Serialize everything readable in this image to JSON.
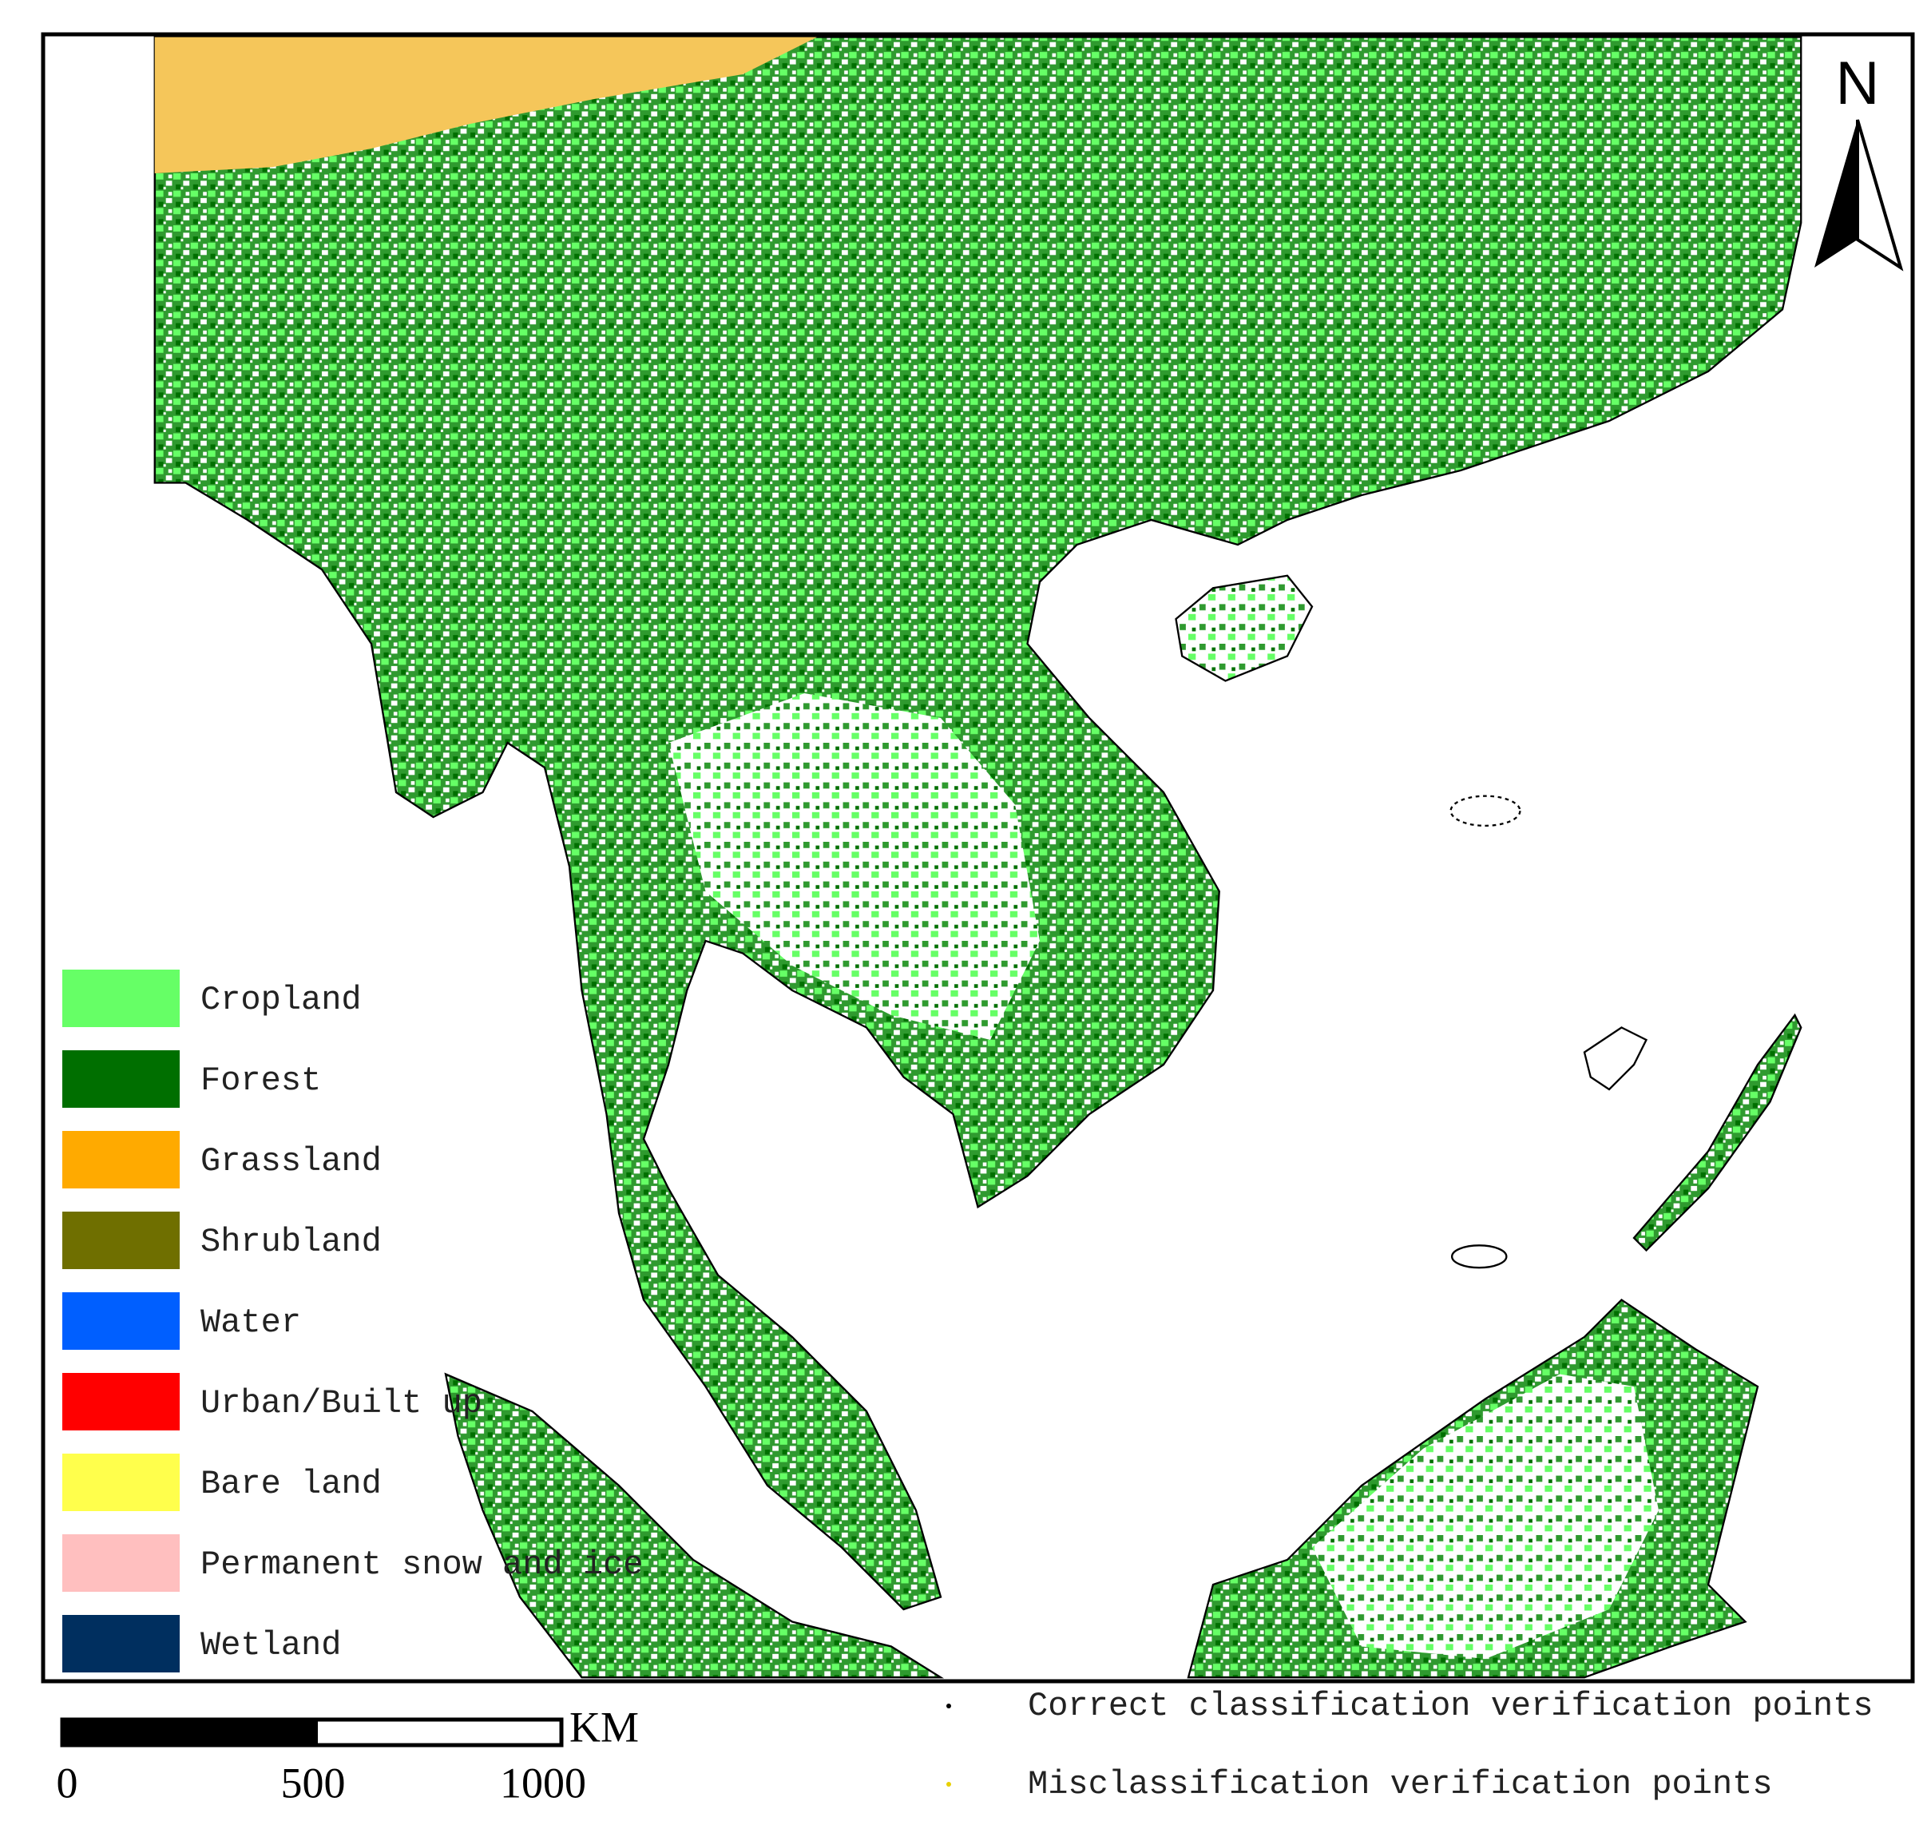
{
  "north_label": "N",
  "legend": {
    "items": [
      {
        "label": "Cropland",
        "color": "#66ff66"
      },
      {
        "label": "Forest",
        "color": "#006f00"
      },
      {
        "label": "Grassland",
        "color": "#ffaa00"
      },
      {
        "label": "Shrubland",
        "color": "#6f6f00"
      },
      {
        "label": "Water",
        "color": "#005fff"
      },
      {
        "label": "Urban/Built up",
        "color": "#ff0000"
      },
      {
        "label": "Bare land",
        "color": "#ffff4c"
      },
      {
        "label": "Permanent snow and ice",
        "color": "#ffbfbf"
      },
      {
        "label": "Wetland",
        "color": "#002f5f"
      }
    ]
  },
  "scale_bar": {
    "labels": [
      "0",
      "500",
      "1000"
    ],
    "unit": "KM"
  },
  "points_legend": {
    "items": [
      "Correct classification verification points",
      "Misclassification verification points"
    ]
  }
}
